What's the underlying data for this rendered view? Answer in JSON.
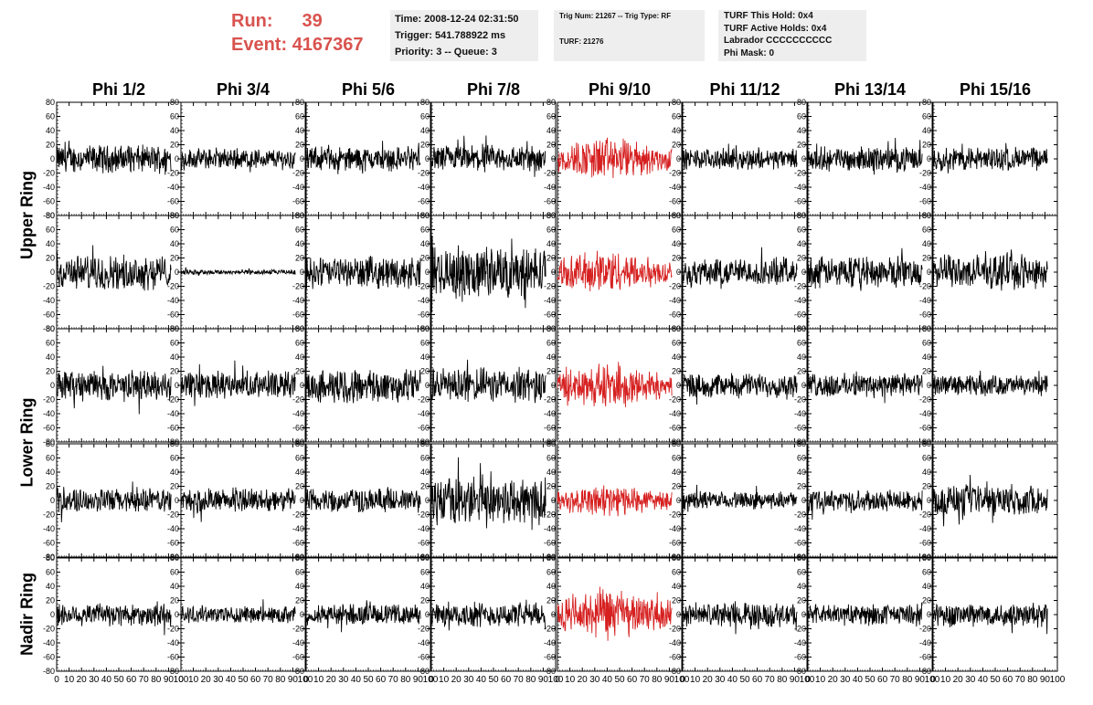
{
  "header": {
    "run_label": "Run:",
    "run_value": "39",
    "event_label": "Event:",
    "event_value": "4167367"
  },
  "info_time": {
    "time": "Time: 2008-12-24 02:31:50",
    "trigger": "Trigger: 541.788922 ms",
    "priority": "Priority: 3 -- Queue: 3"
  },
  "info_trig": {
    "trig": "Trig Num: 21267 -- Trig Type: RF",
    "turf": "TURF: 21276"
  },
  "info_turf": {
    "hold": "TURF This Hold: 0x4",
    "active": "TURF Active Holds: 0x4",
    "labrador": "Labrador CCCCCCCCCC",
    "phimask": "Phi Mask: 0"
  },
  "chart_data": {
    "type": "line",
    "columns": [
      "Phi 1/2",
      "Phi 3/4",
      "Phi 5/6",
      "Phi 7/8",
      "Phi 9/10",
      "Phi 11/12",
      "Phi 13/14",
      "Phi 15/16"
    ],
    "rows": [
      "Upper Ring",
      "Upper Ring",
      "Lower Ring",
      "Lower Ring",
      "Nadir Ring"
    ],
    "ring_labels": [
      {
        "text": "Upper Ring",
        "rows": [
          0,
          1
        ]
      },
      {
        "text": "Lower Ring",
        "rows": [
          2,
          3
        ]
      },
      {
        "text": "Nadir Ring",
        "rows": [
          4
        ]
      }
    ],
    "ylim": [
      -80,
      80
    ],
    "y_ticks": [
      80,
      60,
      40,
      20,
      0,
      -20,
      -40,
      -60,
      -80
    ],
    "y_tick_labels": [
      "80",
      "60",
      "40",
      "20",
      "0",
      "-20",
      "-40",
      "-60",
      "-80"
    ],
    "xlim": [
      0,
      100
    ],
    "x_ticks": [
      0,
      10,
      20,
      30,
      40,
      50,
      60,
      70,
      80,
      90,
      100
    ],
    "x_tick_labels": [
      "0",
      "10",
      "20",
      "30",
      "40",
      "50",
      "60",
      "70",
      "80",
      "90",
      "100"
    ],
    "waveform_points": 260,
    "waveform_extent": [
      0,
      92
    ],
    "highlight_column": 4,
    "highlight_color": "#d62020",
    "trace_color": "#000000",
    "amplitudes": [
      [
        16,
        12,
        14,
        16,
        22,
        12,
        14,
        14
      ],
      [
        20,
        3,
        18,
        30,
        22,
        16,
        18,
        20
      ],
      [
        18,
        16,
        20,
        20,
        22,
        14,
        14,
        12
      ],
      [
        14,
        14,
        14,
        28,
        16,
        10,
        12,
        18
      ],
      [
        14,
        10,
        12,
        14,
        26,
        14,
        12,
        14
      ]
    ],
    "grid": false,
    "legend": "none"
  }
}
